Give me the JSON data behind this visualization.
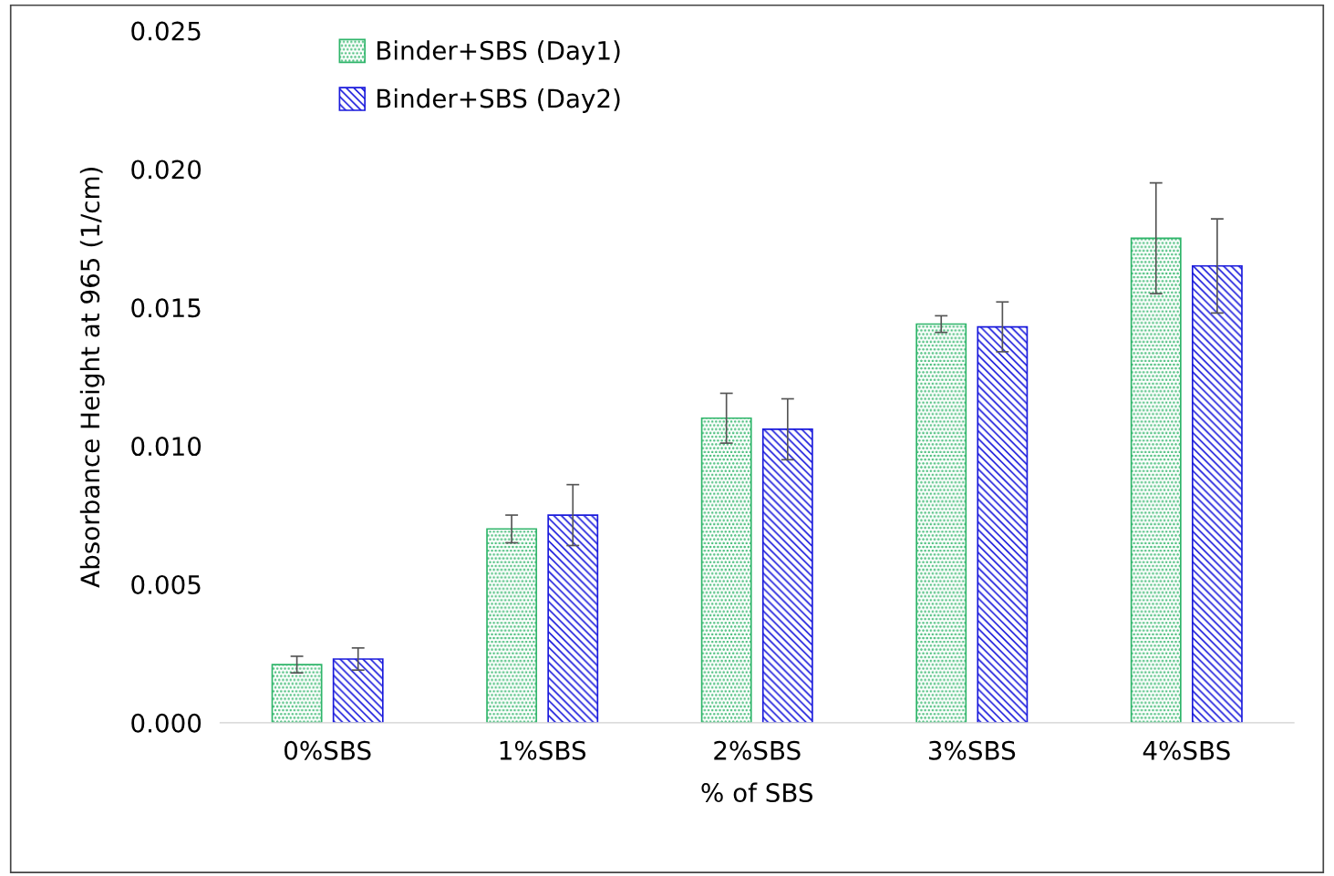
{
  "chart_data": {
    "type": "bar",
    "xlabel": "% of SBS",
    "ylabel": "Absorbance Height at 965 (1/cm)",
    "categories": [
      "0%SBS",
      "1%SBS",
      "2%SBS",
      "3%SBS",
      "4%SBS"
    ],
    "series": [
      {
        "name": "Binder+SBS (Day1)",
        "color": "#2fb56a",
        "values": [
          0.0021,
          0.007,
          0.011,
          0.0144,
          0.0175
        ],
        "errors": [
          0.0003,
          0.0005,
          0.0009,
          0.0003,
          0.002
        ]
      },
      {
        "name": "Binder+SBS (Day2)",
        "color": "#1a1adc",
        "values": [
          0.0023,
          0.0075,
          0.0106,
          0.0143,
          0.0165
        ],
        "errors": [
          0.0004,
          0.0011,
          0.0011,
          0.0009,
          0.0017
        ]
      }
    ],
    "ylim": [
      0,
      0.025
    ],
    "yticks": [
      {
        "value": 0,
        "label": "0.000"
      },
      {
        "value": 0.005,
        "label": "0.005"
      },
      {
        "value": 0.01,
        "label": "0.010"
      },
      {
        "value": 0.015,
        "label": "0.015"
      },
      {
        "value": 0.02,
        "label": "0.020"
      },
      {
        "value": 0.025,
        "label": "0.025"
      }
    ],
    "grid": false,
    "legend": "top left"
  }
}
